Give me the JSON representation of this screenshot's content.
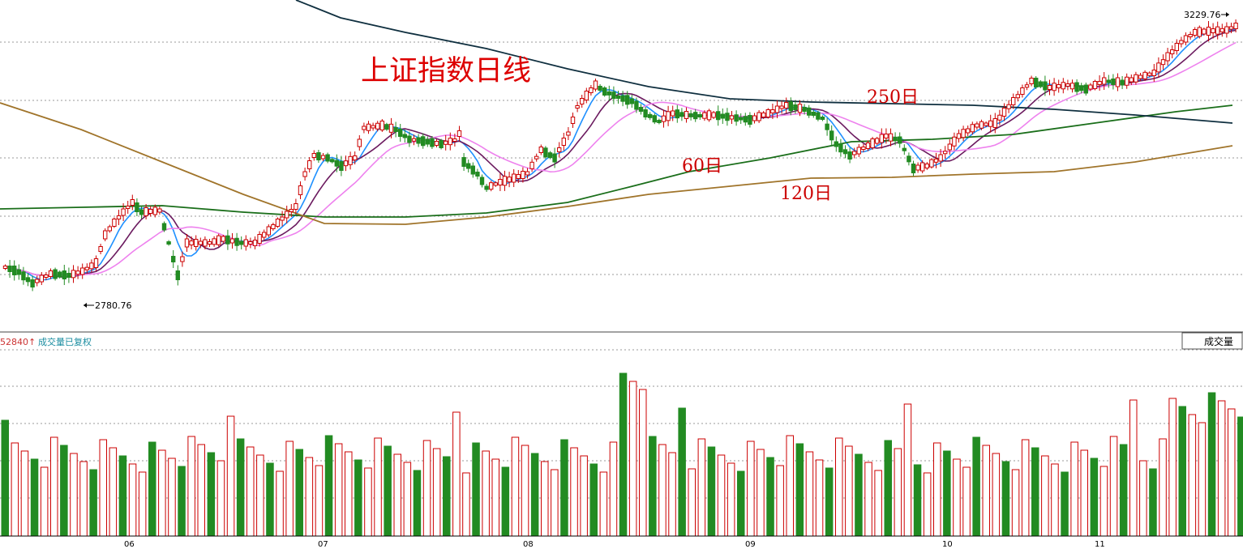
{
  "chart_data": [
    {
      "type": "candlestick",
      "title": "上证指数日线",
      "y_range_estimate": [
        2755,
        3240
      ],
      "annotations": {
        "high_label": "3229.76",
        "low_label": "2780.76",
        "ma_labels": [
          "250日",
          "60日",
          "120日"
        ]
      },
      "moving_average_colors": {
        "ma5": "#1e90ff",
        "ma10": "#6b1a5f",
        "ma20": "#ee82ee",
        "ma60": "#1a6e1a",
        "ma120": "#a0742a",
        "ma250": "#0f2f3f"
      },
      "colors": {
        "up": "#cc0000",
        "down": "#228b22",
        "title": "#dd0000",
        "label": "#cc0000"
      }
    },
    {
      "type": "bar",
      "title": "成交量已复权",
      "value_label": "52840↑",
      "button_label": "成交量",
      "x_tick_labels": [
        "06",
        "07",
        "08",
        "09",
        "10",
        "11"
      ]
    }
  ]
}
